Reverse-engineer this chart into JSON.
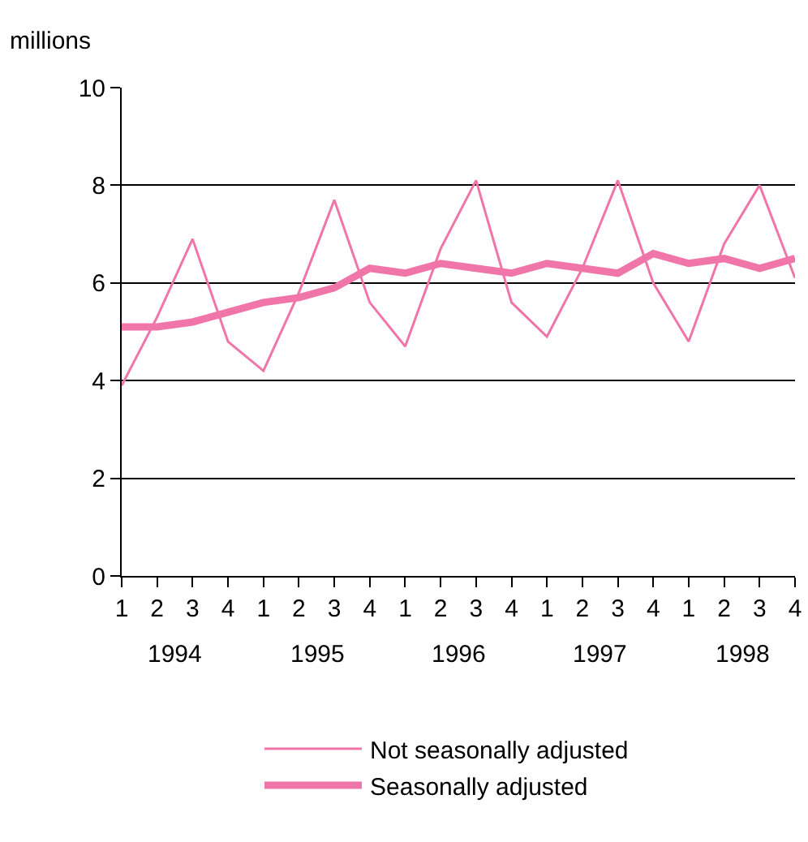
{
  "chart_data": {
    "type": "line",
    "ylabel": "millions",
    "categories": [
      "1",
      "2",
      "3",
      "4",
      "1",
      "2",
      "3",
      "4",
      "1",
      "2",
      "3",
      "4",
      "1",
      "2",
      "3",
      "4",
      "1",
      "2",
      "3",
      "4"
    ],
    "annotations": [
      "1994",
      "1995",
      "1996",
      "1997",
      "1998"
    ],
    "series": [
      {
        "name": "Not seasonally adjusted",
        "color": "#f075a8",
        "values": [
          3.9,
          5.3,
          6.9,
          4.8,
          4.2,
          5.8,
          7.7,
          5.6,
          4.7,
          6.7,
          8.1,
          5.6,
          4.9,
          6.3,
          8.1,
          6.0,
          4.8,
          6.8,
          8.0,
          6.1
        ]
      },
      {
        "name": "Seasonally adjusted",
        "color": "#f075a8",
        "values": [
          5.1,
          5.1,
          5.2,
          5.4,
          5.6,
          5.7,
          5.9,
          6.3,
          6.2,
          6.4,
          6.3,
          6.2,
          6.4,
          6.3,
          6.2,
          6.6,
          6.4,
          6.5,
          6.3,
          6.5
        ]
      }
    ],
    "ylim": [
      0,
      10
    ],
    "yticks": [
      0,
      2,
      4,
      6,
      8,
      10
    ],
    "grid": "y",
    "legend": "bottom",
    "marker": "none",
    "line_style": "solid"
  }
}
